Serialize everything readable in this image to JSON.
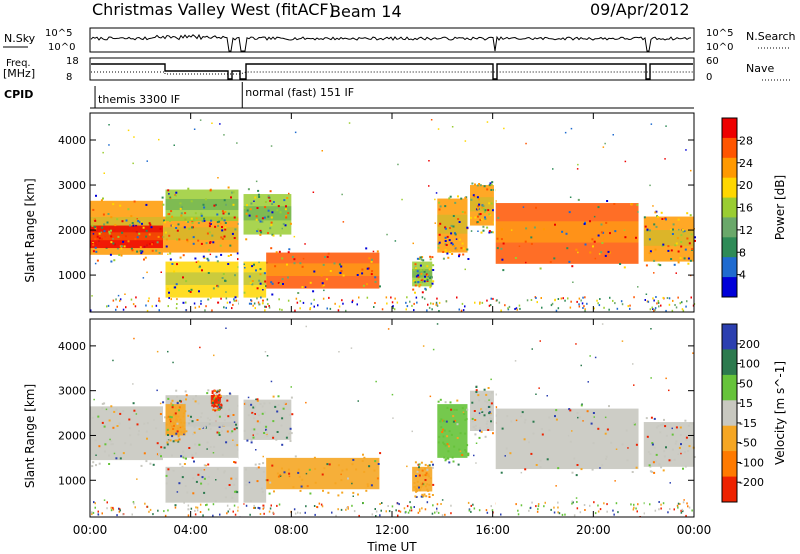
{
  "header": {
    "title": "Christmas Valley West (fitACF)",
    "beam": "Beam 14",
    "date": "09/Apr/2012"
  },
  "params": {
    "nsky_label": "N.Sky",
    "nsky_ticks": [
      "10^5",
      "10^0"
    ],
    "nsearch_label": "N.Search",
    "freq_label": "Freq.",
    "freq_unit": "[MHz]",
    "freq_ticks": [
      "18",
      "8"
    ],
    "nave_label": "Nave",
    "nave_ticks": [
      "60",
      "0"
    ],
    "cpid_label": "CPID",
    "cpid_entries": [
      {
        "text": "themis 3300 IF",
        "start_hour": 0.2
      },
      {
        "text": "normal (fast) 151 IF",
        "start_hour": 6.05
      }
    ],
    "cpid_switch_hour": 6.05
  },
  "chart_data": [
    {
      "type": "heatmap",
      "name": "power",
      "ylabel": "Slant Range [km]",
      "xlabel": "",
      "xlim": [
        0,
        24
      ],
      "ylim": [
        180,
        4600
      ],
      "y_ticks": [
        1000,
        2000,
        3000,
        4000
      ],
      "colorbar_label": "Power [dB]",
      "colorbar_ticks": [
        "4",
        "8",
        "12",
        "16",
        "20",
        "24",
        "28"
      ],
      "colorbar_colors": [
        "#0000d8",
        "#1f6bd0",
        "#2e8b57",
        "#6aa86a",
        "#9acd32",
        "#ffd700",
        "#ff9900",
        "#ff5500",
        "#ee0000"
      ],
      "bands": [
        {
          "x0": 0.0,
          "x1": 2.9,
          "y0": 1450,
          "y1": 2650,
          "level": 0.78
        },
        {
          "x0": 0.0,
          "x1": 2.9,
          "y0": 1600,
          "y1": 2100,
          "level": 0.95
        },
        {
          "x0": 2.9,
          "x1": 5.9,
          "y0": 1500,
          "y1": 2300,
          "level": 0.72
        },
        {
          "x0": 3.0,
          "x1": 5.9,
          "y0": 2200,
          "y1": 2900,
          "level": 0.45
        },
        {
          "x0": 6.1,
          "x1": 8.0,
          "y0": 1900,
          "y1": 2800,
          "level": 0.55
        },
        {
          "x0": 3.0,
          "x1": 7.0,
          "y0": 500,
          "y1": 1300,
          "level": 0.6
        },
        {
          "x0": 7.0,
          "x1": 11.5,
          "y0": 700,
          "y1": 1500,
          "level": 0.82
        },
        {
          "x0": 12.8,
          "x1": 13.6,
          "y0": 750,
          "y1": 1300,
          "level": 0.5
        },
        {
          "x0": 13.8,
          "x1": 15.0,
          "y0": 1500,
          "y1": 2700,
          "level": 0.7
        },
        {
          "x0": 15.1,
          "x1": 16.1,
          "y0": 2100,
          "y1": 3000,
          "level": 0.8
        },
        {
          "x0": 16.1,
          "x1": 21.8,
          "y0": 1250,
          "y1": 2600,
          "level": 0.85
        },
        {
          "x0": 22.0,
          "x1": 24.0,
          "y0": 1300,
          "y1": 2300,
          "level": 0.8
        }
      ]
    },
    {
      "type": "heatmap",
      "name": "velocity",
      "ylabel": "Slant Range [km]",
      "xlabel": "Time UT",
      "xlim": [
        0,
        24
      ],
      "ylim": [
        180,
        4600
      ],
      "x_ticks": [
        "00:00",
        "04:00",
        "08:00",
        "12:00",
        "16:00",
        "20:00",
        "00:00"
      ],
      "y_ticks": [
        1000,
        2000,
        3000,
        4000
      ],
      "colorbar_label": "Velocity [m s^-1]",
      "colorbar_ticks": [
        "200",
        "100",
        "50",
        "15",
        "-15",
        "-50",
        "-100",
        "-200"
      ],
      "colorbar_colors": [
        "#2b3fb0",
        "#2c7a4e",
        "#66c33a",
        "#c8c8c0",
        "#f5a623",
        "#ff7a00",
        "#ee2200"
      ],
      "bands": [
        {
          "x0": 0.0,
          "x1": 2.9,
          "y0": 1450,
          "y1": 2650,
          "color": "#c8c8c0"
        },
        {
          "x0": 2.9,
          "x1": 5.9,
          "y0": 1500,
          "y1": 2300,
          "color": "#c8c8c0"
        },
        {
          "x0": 3.0,
          "x1": 5.9,
          "y0": 2200,
          "y1": 2900,
          "color": "#c8c8c0"
        },
        {
          "x0": 6.1,
          "x1": 8.0,
          "y0": 1900,
          "y1": 2800,
          "color": "#c8c8c0"
        },
        {
          "x0": 3.0,
          "x1": 7.0,
          "y0": 500,
          "y1": 1300,
          "color": "#c8c8c0"
        },
        {
          "x0": 7.0,
          "x1": 11.5,
          "y0": 800,
          "y1": 1500,
          "color": "#f5a623"
        },
        {
          "x0": 12.8,
          "x1": 13.6,
          "y0": 750,
          "y1": 1300,
          "color": "#f5a623"
        },
        {
          "x0": 13.8,
          "x1": 15.0,
          "y0": 1500,
          "y1": 2700,
          "color": "#66c33a"
        },
        {
          "x0": 15.1,
          "x1": 16.1,
          "y0": 2100,
          "y1": 3000,
          "color": "#c8c8c0"
        },
        {
          "x0": 16.1,
          "x1": 21.8,
          "y0": 1250,
          "y1": 2600,
          "color": "#c8c8c0"
        },
        {
          "x0": 22.0,
          "x1": 24.0,
          "y0": 1300,
          "y1": 2300,
          "color": "#c8c8c0"
        },
        {
          "x0": 3.0,
          "x1": 3.8,
          "y0": 2000,
          "y1": 2700,
          "color": "#f5a623"
        },
        {
          "x0": 4.8,
          "x1": 5.2,
          "y0": 2700,
          "y1": 2900,
          "color": "#ee2200"
        }
      ]
    }
  ]
}
